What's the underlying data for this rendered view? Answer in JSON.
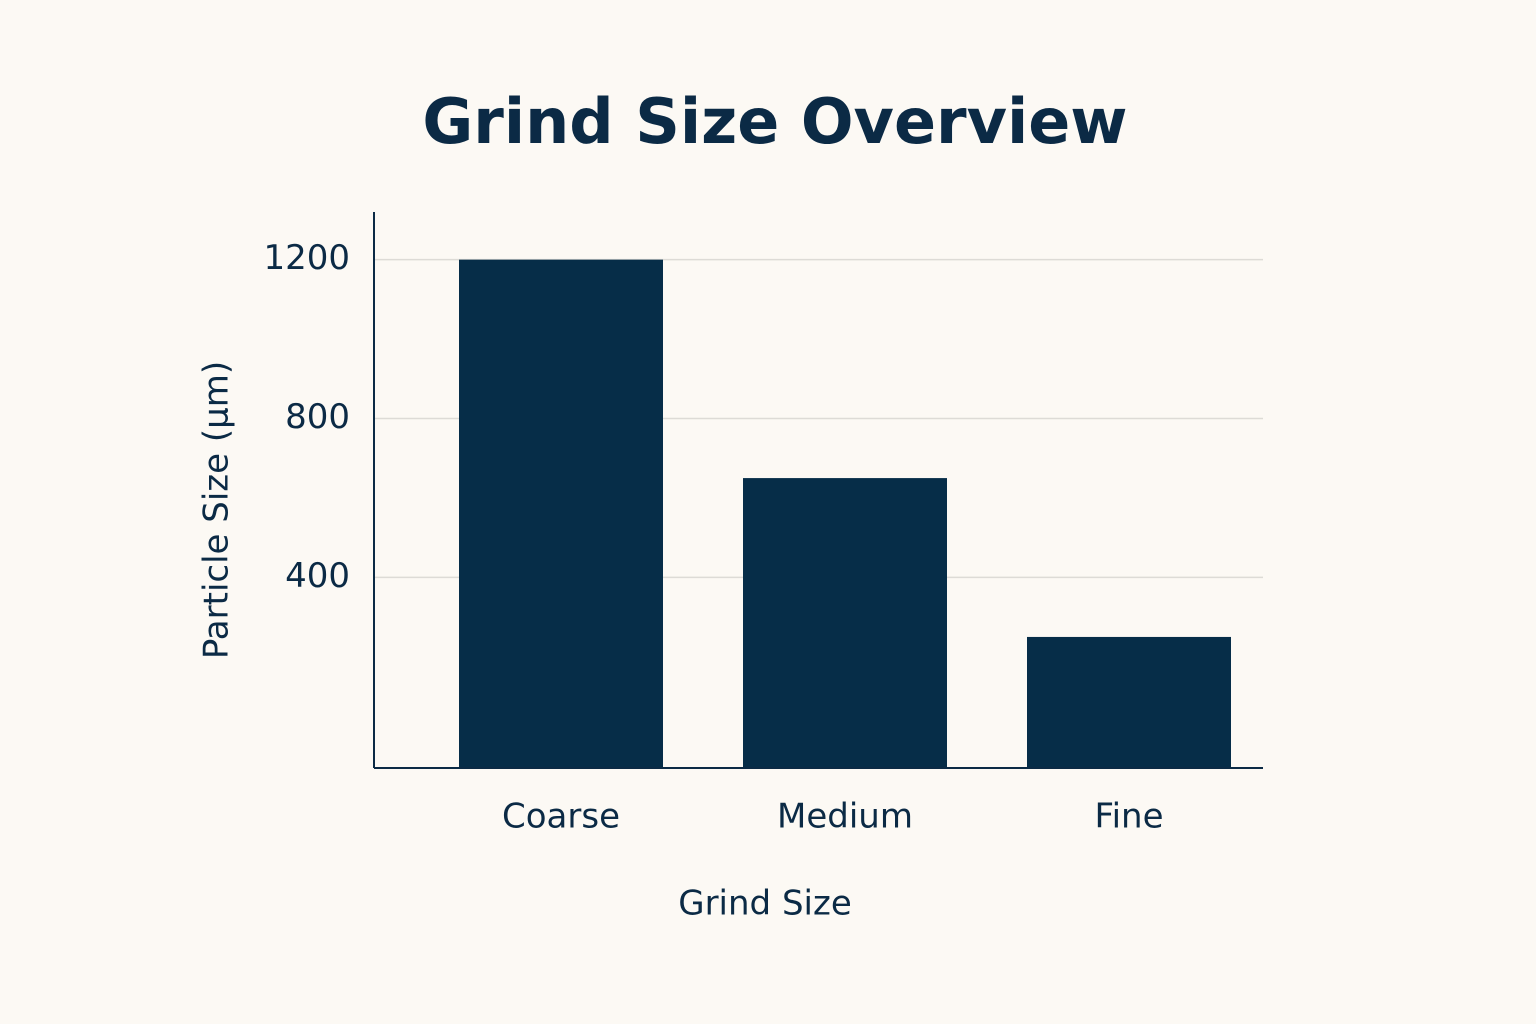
{
  "chart_data": {
    "type": "bar",
    "title": "Grind Size Overview",
    "x_label": "Grind Size",
    "y_label": "Particle Size (µm)",
    "categories": [
      "Coarse",
      "Medium",
      "Fine"
    ],
    "values": [
      1200,
      650,
      250
    ],
    "color": "#062d48",
    "ylim": [
      -80,
      1320
    ],
    "yticks": [
      400,
      800,
      1200
    ],
    "grid": true
  }
}
